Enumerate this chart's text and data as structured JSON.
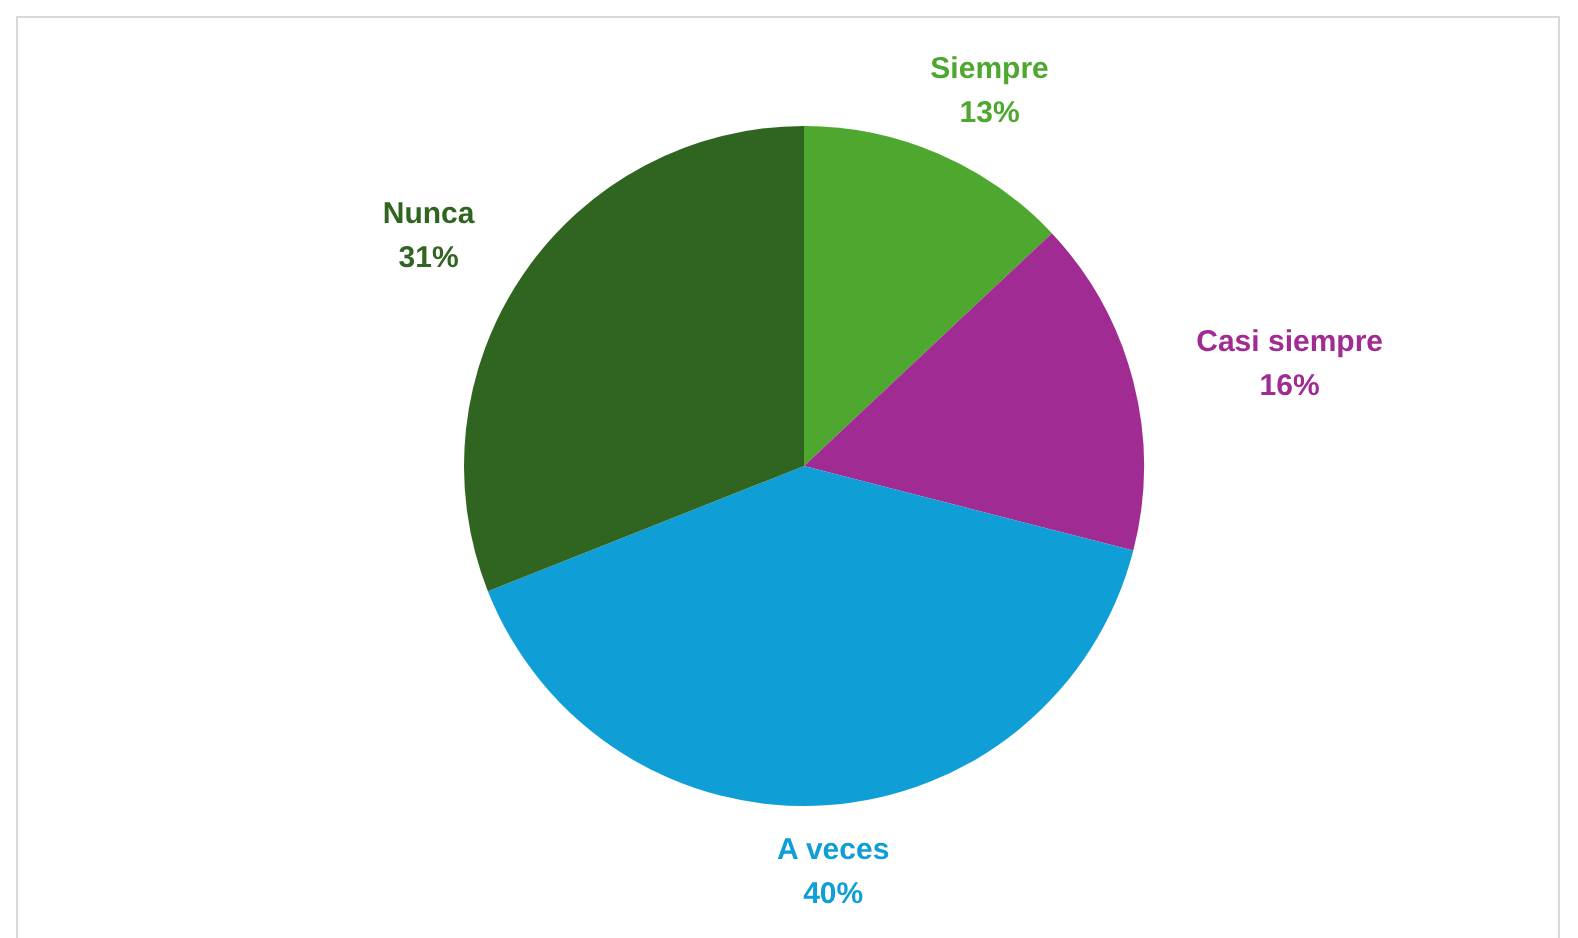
{
  "chart_data": {
    "type": "pie",
    "categories": [
      "Siempre",
      "Casi siempre",
      "A veces",
      "Nunca"
    ],
    "values": [
      13,
      16,
      40,
      31
    ],
    "colors": [
      "#4ea72e",
      "#a02b93",
      "#0f9ed5",
      "#306521"
    ],
    "value_labels": [
      "13%",
      "16%",
      "40%",
      "31%"
    ],
    "legend": false
  }
}
